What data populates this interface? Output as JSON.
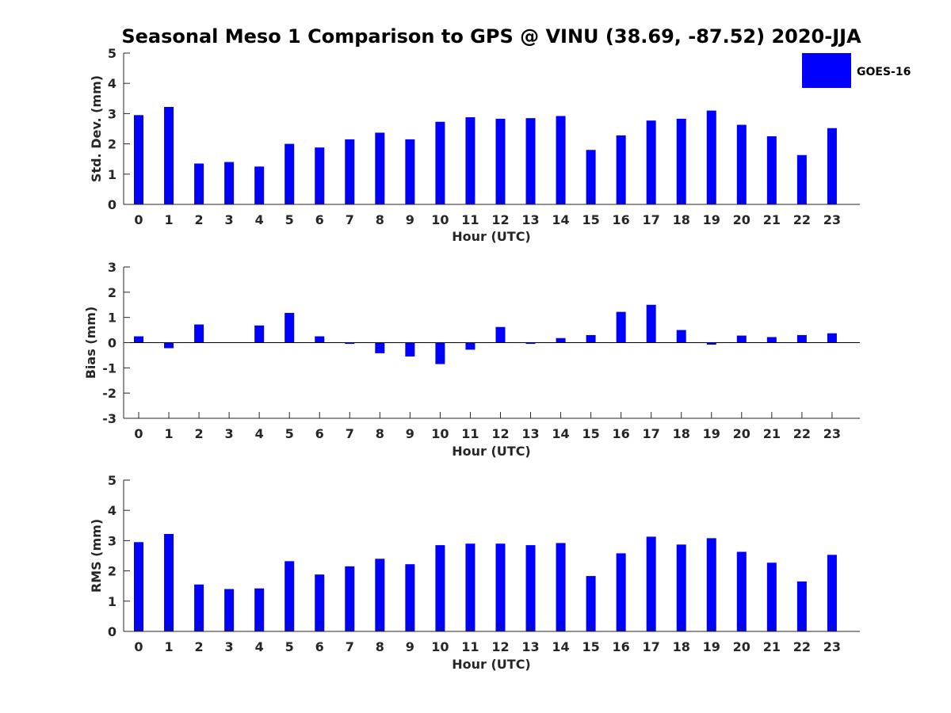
{
  "title": "Seasonal Meso 1 Comparison to GPS @ VINU (38.69, -87.52) 2020-JJA",
  "legend": {
    "label": "GOES-16",
    "color": "#0000ff",
    "placement": "top-right"
  },
  "chart_data": [
    {
      "type": "bar",
      "xlabel": "Hour (UTC)",
      "ylabel": "Std. Dev. (mm)",
      "ylim": [
        0,
        5
      ],
      "yticks": [
        0,
        1,
        2,
        3,
        4,
        5
      ],
      "categories": [
        "0",
        "1",
        "2",
        "3",
        "4",
        "5",
        "6",
        "7",
        "8",
        "9",
        "10",
        "11",
        "12",
        "13",
        "14",
        "15",
        "16",
        "17",
        "18",
        "19",
        "20",
        "21",
        "22",
        "23"
      ],
      "series": [
        {
          "name": "GOES-16",
          "values": [
            2.95,
            3.22,
            1.35,
            1.4,
            1.25,
            2.0,
            1.88,
            2.15,
            2.37,
            2.15,
            2.73,
            2.88,
            2.83,
            2.85,
            2.92,
            1.8,
            2.28,
            2.77,
            2.83,
            3.1,
            2.63,
            2.25,
            1.63,
            2.52
          ]
        }
      ],
      "grid": false
    },
    {
      "type": "bar",
      "xlabel": "Hour (UTC)",
      "ylabel": "Bias (mm)",
      "ylim": [
        -3,
        3
      ],
      "yticks": [
        -3,
        -2,
        -1,
        0,
        1,
        2,
        3
      ],
      "categories": [
        "0",
        "1",
        "2",
        "3",
        "4",
        "5",
        "6",
        "7",
        "8",
        "9",
        "10",
        "11",
        "12",
        "13",
        "14",
        "15",
        "16",
        "17",
        "18",
        "19",
        "20",
        "21",
        "22",
        "23"
      ],
      "series": [
        {
          "name": "GOES-16",
          "values": [
            0.25,
            -0.22,
            0.72,
            0.0,
            0.68,
            1.18,
            0.25,
            -0.05,
            -0.42,
            -0.55,
            -0.85,
            -0.28,
            0.62,
            -0.05,
            0.18,
            0.3,
            1.22,
            1.5,
            0.5,
            -0.08,
            0.28,
            0.22,
            0.3,
            0.37
          ]
        }
      ],
      "grid": false
    },
    {
      "type": "bar",
      "xlabel": "Hour (UTC)",
      "ylabel": "RMS (mm)",
      "ylim": [
        0,
        5
      ],
      "yticks": [
        0,
        1,
        2,
        3,
        4,
        5
      ],
      "categories": [
        "0",
        "1",
        "2",
        "3",
        "4",
        "5",
        "6",
        "7",
        "8",
        "9",
        "10",
        "11",
        "12",
        "13",
        "14",
        "15",
        "16",
        "17",
        "18",
        "19",
        "20",
        "21",
        "22",
        "23"
      ],
      "series": [
        {
          "name": "GOES-16",
          "values": [
            2.95,
            3.22,
            1.55,
            1.4,
            1.42,
            2.32,
            1.88,
            2.15,
            2.4,
            2.22,
            2.85,
            2.9,
            2.9,
            2.85,
            2.92,
            1.83,
            2.58,
            3.13,
            2.87,
            3.08,
            2.63,
            2.27,
            1.65,
            2.53
          ]
        }
      ],
      "grid": false
    }
  ]
}
